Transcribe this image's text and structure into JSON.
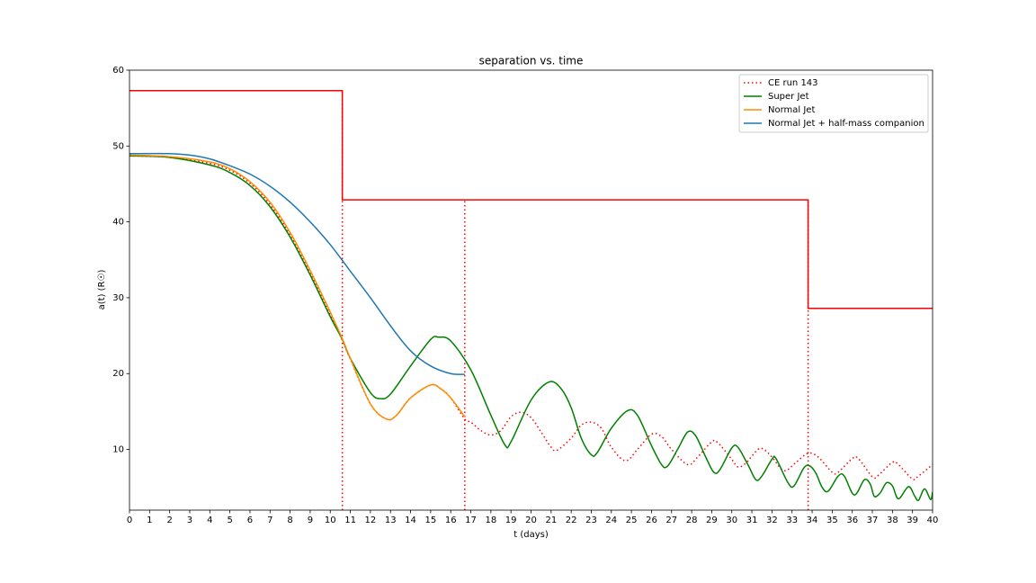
{
  "chart_data": {
    "type": "line",
    "title": "separation vs. time",
    "xlabel": "t (days)",
    "ylabel": "a(t) (R☉)",
    "xlim": [
      0,
      40
    ],
    "ylim": [
      2,
      60
    ],
    "xticks": [
      0,
      1,
      2,
      3,
      4,
      5,
      6,
      7,
      8,
      9,
      10,
      11,
      12,
      13,
      14,
      15,
      16,
      17,
      18,
      19,
      20,
      21,
      22,
      23,
      24,
      25,
      26,
      27,
      28,
      29,
      30,
      31,
      32,
      33,
      34,
      35,
      36,
      37,
      38,
      39,
      40
    ],
    "yticks": [
      10,
      20,
      30,
      40,
      50,
      60
    ],
    "legend": "upper right",
    "series": [
      {
        "name": "CE run 143",
        "color": "#ff0000",
        "style": "dotted",
        "x": [
          0,
          2,
          4,
          5,
          6,
          7,
          8,
          9,
          10,
          10.6,
          11,
          12,
          12.8,
          13.3,
          14,
          15,
          15.5,
          16,
          16.7,
          17,
          17.5,
          18,
          18.5,
          19,
          19.5,
          20,
          20.5,
          21,
          21.3,
          22,
          22.5,
          23,
          23.5,
          24,
          24.7,
          25.3,
          26,
          26.5,
          27,
          27.8,
          28.3,
          29,
          29.3,
          30,
          30.3,
          30.7,
          31.3,
          31.6,
          32,
          32.6,
          33.2,
          33.8,
          34.3,
          35,
          35.3,
          36,
          36.3,
          37,
          37.3,
          38,
          38.3,
          39,
          39.3,
          40
        ],
        "values": [
          48.7,
          48.5,
          47.7,
          46.8,
          45.1,
          42.3,
          38.3,
          33.3,
          27.8,
          24.4,
          21.9,
          16,
          14,
          14.5,
          16.8,
          18.5,
          18,
          16.8,
          14,
          13.6,
          12.5,
          11.9,
          12.5,
          14.3,
          14.9,
          14.2,
          12.3,
          10.3,
          9.9,
          11.5,
          13.2,
          13.6,
          12.8,
          10.3,
          8.5,
          10,
          12,
          11.7,
          10,
          8,
          9,
          11,
          10.9,
          8.7,
          7.7,
          8.2,
          10,
          10,
          9,
          7.2,
          8.3,
          9.5,
          9,
          7,
          7,
          8.8,
          8.8,
          6.4,
          6.6,
          8.3,
          8,
          6.1,
          6.5,
          8
        ]
      },
      {
        "name": "Super Jet",
        "color": "#008000",
        "style": "solid",
        "x": [
          0,
          2,
          4,
          5,
          6,
          7,
          8,
          9,
          10,
          10.6,
          11,
          12,
          12.5,
          13,
          14,
          15,
          15.4,
          16,
          17,
          18,
          18.7,
          19,
          20,
          20.9,
          21.5,
          22,
          22.5,
          23,
          23.3,
          24,
          24.8,
          25.3,
          26,
          26.5,
          26.8,
          27.3,
          27.8,
          28.2,
          28.7,
          29.1,
          29.4,
          30,
          30.3,
          30.8,
          31.2,
          31.5,
          32,
          32.2,
          32.8,
          33.1,
          33.6,
          33.9,
          34.2,
          34.5,
          34.8,
          35.3,
          35.6,
          36.1,
          36.6,
          36.9,
          37.1,
          37.4,
          37.7,
          38,
          38.3,
          38.8,
          39.1,
          39.3,
          39.6,
          39.9,
          40
        ],
        "values": [
          48.7,
          48.5,
          47.5,
          46.5,
          44.8,
          42,
          38,
          33,
          27.5,
          24.5,
          22,
          17.5,
          16.7,
          17.3,
          21,
          24.5,
          24.8,
          24.3,
          20.5,
          14.5,
          10.6,
          11,
          16.5,
          18.9,
          18,
          15.5,
          11.5,
          9.3,
          9.6,
          12.8,
          15.1,
          14.5,
          10.5,
          8,
          7.8,
          10,
          12.3,
          11.8,
          9,
          7,
          7.3,
          10.2,
          10.3,
          8,
          6,
          6.5,
          8.7,
          8.8,
          5.6,
          5.2,
          7.6,
          7.8,
          6.8,
          5,
          4.5,
          6.5,
          6.5,
          4,
          6,
          5.4,
          3.8,
          4.3,
          5.6,
          5.2,
          3.5,
          5.1,
          3.9,
          3.3,
          4.8,
          3.4,
          4.4
        ]
      },
      {
        "name": "Normal Jet",
        "color": "#ff8c00",
        "style": "solid",
        "x": [
          0,
          2,
          4,
          5,
          6,
          7,
          8,
          9,
          10,
          10.6,
          11,
          12,
          12.8,
          13.3,
          14,
          15,
          15.5,
          16,
          16.7
        ],
        "values": [
          48.8,
          48.6,
          47.9,
          47,
          45.3,
          42.6,
          38.6,
          33.6,
          28.1,
          24.6,
          22,
          16,
          14,
          14.5,
          16.8,
          18.5,
          18,
          16.8,
          14.3
        ]
      },
      {
        "name": "Normal Jet + half-mass companion",
        "color": "#1f77b4",
        "style": "solid",
        "x": [
          0,
          2,
          3,
          4,
          5,
          6,
          7,
          8,
          9,
          10,
          11,
          12,
          13,
          14,
          15,
          16,
          16.7
        ],
        "values": [
          49,
          49,
          48.8,
          48.3,
          47.4,
          46.3,
          44.7,
          42.6,
          40,
          37,
          33.5,
          30,
          26.3,
          23,
          21,
          20,
          19.9
        ]
      },
      {
        "color": "#ff0000",
        "style": "solid",
        "drawstyle": "steps-post",
        "x": [
          0,
          10.6,
          33.8,
          40
        ],
        "values": [
          57.3,
          42.9,
          28.6,
          28.6
        ]
      }
    ],
    "vlines": {
      "color": "#ff0000",
      "style": "dotted",
      "x": [
        10.6,
        16.7,
        33.8
      ],
      "top": [
        57.3,
        42.9,
        42.9
      ]
    }
  }
}
